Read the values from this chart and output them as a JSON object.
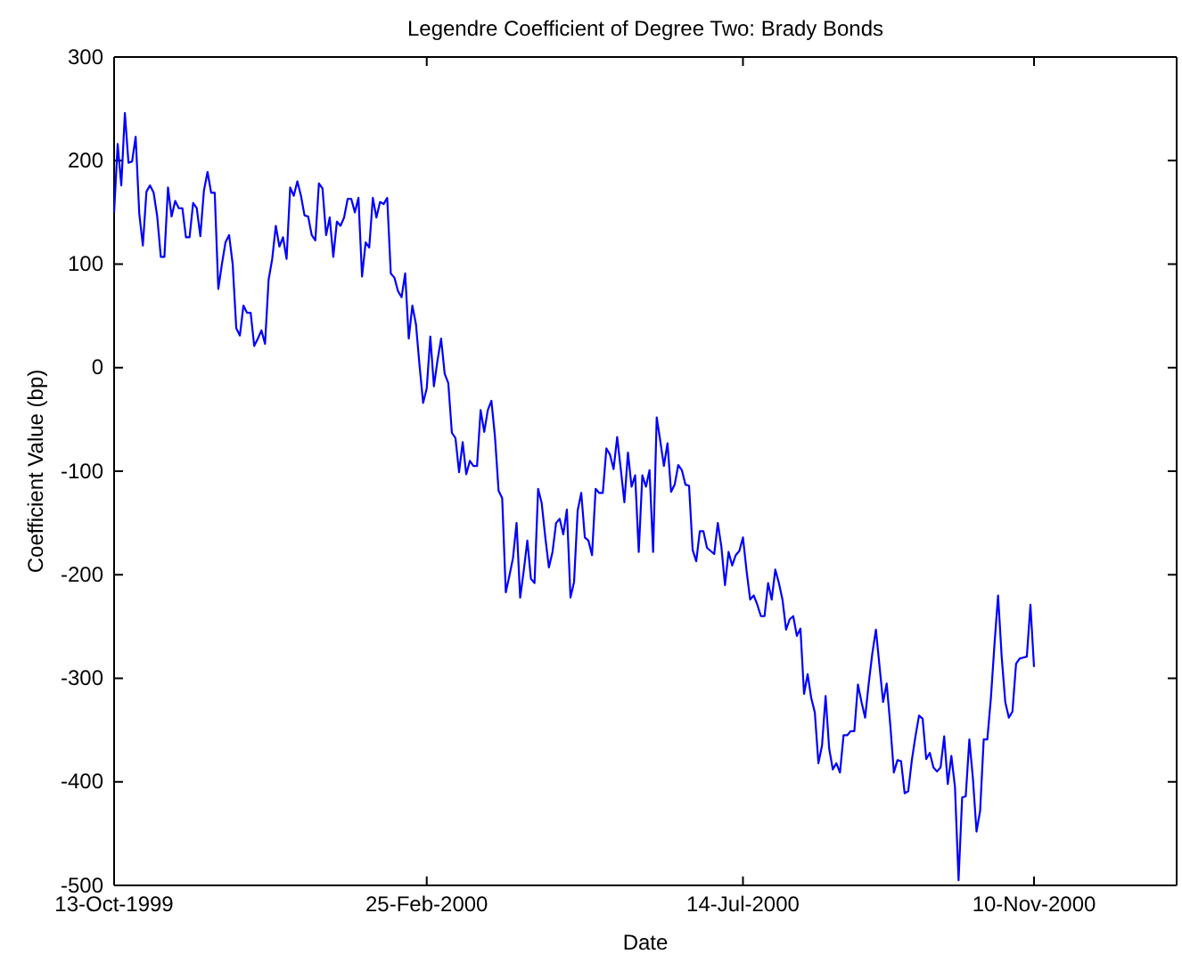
{
  "chart_data": {
    "type": "line",
    "title": "Legendre Coefficient of Degree Two: Brady Bonds",
    "xlabel": "Date",
    "ylabel": "Coefficient Value (bp)",
    "categories": [
      "13-Oct-1999",
      null,
      null,
      null,
      null,
      null,
      null,
      null,
      null,
      null,
      null,
      null,
      null,
      null,
      null,
      null,
      null,
      null,
      null,
      null,
      null,
      null,
      null,
      null,
      null,
      null,
      null,
      null,
      null,
      null,
      null,
      null,
      null,
      null,
      null,
      null,
      null,
      null,
      null,
      null,
      null,
      null,
      null,
      null,
      null,
      null,
      null,
      null,
      null,
      null,
      null,
      null,
      null,
      null,
      null,
      null,
      null,
      null,
      null,
      null,
      null,
      null,
      null,
      null,
      null,
      null,
      null,
      null,
      null,
      null,
      null,
      null,
      null,
      null,
      null,
      null,
      null,
      null,
      null,
      null,
      null,
      null,
      null,
      null,
      null,
      null,
      null,
      "25-Feb-2000",
      null,
      null,
      null,
      null,
      null,
      null,
      null,
      null,
      null,
      null,
      null,
      null,
      null,
      null,
      null,
      null,
      null,
      null,
      null,
      null,
      null,
      null,
      null,
      null,
      null,
      null,
      null,
      null,
      null,
      null,
      null,
      null,
      null,
      null,
      null,
      null,
      null,
      null,
      null,
      null,
      null,
      null,
      null,
      null,
      null,
      null,
      null,
      null,
      null,
      null,
      null,
      null,
      null,
      null,
      null,
      null,
      null,
      null,
      null,
      null,
      null,
      null,
      null,
      null,
      null,
      null,
      null,
      null,
      null,
      null,
      null,
      null,
      null,
      null,
      null,
      null,
      null,
      null,
      null,
      null,
      null,
      null,
      null,
      null,
      null,
      null,
      null,
      "14-Jul-2000",
      null,
      null,
      null,
      null,
      null,
      null,
      null,
      null,
      null,
      null,
      null,
      null,
      null,
      null,
      null,
      null,
      null,
      null,
      null,
      null,
      null,
      null,
      null,
      null,
      null,
      null,
      null,
      null,
      null,
      null,
      null,
      null,
      null,
      null,
      null,
      null,
      null,
      null,
      null,
      null,
      null,
      null,
      null,
      null,
      null,
      null,
      null,
      null,
      null,
      null,
      null,
      null,
      null,
      null,
      null,
      null,
      null,
      null,
      null,
      null,
      null,
      null,
      null,
      null,
      null,
      null,
      null,
      null,
      null,
      null,
      null,
      null,
      null,
      null,
      null,
      null,
      null,
      null,
      null,
      null,
      "10-Nov-2000"
    ],
    "ylim": [
      -500,
      300
    ],
    "yticks": [
      -500,
      -400,
      -300,
      -200,
      -100,
      0,
      100,
      200,
      300
    ],
    "grid": false,
    "marker": "none",
    "line_style": "solid",
    "series": [
      {
        "color": "#0000ff",
        "values": [
          150,
          216,
          176,
          246,
          198,
          199,
          223,
          149,
          118,
          170,
          176,
          169,
          146,
          107,
          107,
          174,
          146,
          161,
          154,
          154,
          126,
          126,
          159,
          154,
          127,
          171,
          189,
          169,
          169,
          76,
          100,
          121,
          128,
          100,
          38,
          31,
          60,
          53,
          53,
          21,
          28,
          36,
          23,
          85,
          105,
          137,
          117,
          126,
          105,
          174,
          166,
          180,
          166,
          147,
          146,
          128,
          123,
          178,
          173,
          128,
          145,
          107,
          141,
          137,
          145,
          163,
          163,
          150,
          164,
          88,
          121,
          116,
          164,
          145,
          160,
          158,
          164,
          91,
          87,
          74,
          68,
          91,
          28,
          60,
          42,
          2,
          -34,
          -20,
          30,
          -18,
          7,
          28,
          -6,
          -15,
          -63,
          -68,
          -101,
          -72,
          -103,
          -90,
          -95,
          -95,
          -41,
          -62,
          -41,
          -32,
          -67,
          -119,
          -126,
          -217,
          -201,
          -184,
          -150,
          -222,
          -196,
          -167,
          -204,
          -208,
          -117,
          -131,
          -164,
          -193,
          -178,
          -150,
          -146,
          -161,
          -137,
          -222,
          -207,
          -138,
          -121,
          -164,
          -167,
          -181,
          -117,
          -121,
          -121,
          -78,
          -84,
          -98,
          -67,
          -98,
          -130,
          -82,
          -115,
          -104,
          -178,
          -104,
          -115,
          -99,
          -178,
          -48,
          -71,
          -95,
          -73,
          -120,
          -113,
          -94,
          -99,
          -113,
          -114,
          -176,
          -187,
          -158,
          -158,
          -174,
          -177,
          -180,
          -150,
          -173,
          -210,
          -178,
          -191,
          -181,
          -177,
          -164,
          -196,
          -224,
          -220,
          -229,
          -240,
          -240,
          -208,
          -224,
          -195,
          -208,
          -224,
          -253,
          -243,
          -240,
          -259,
          -252,
          -315,
          -296,
          -319,
          -333,
          -382,
          -365,
          -317,
          -368,
          -388,
          -382,
          -391,
          -355,
          -355,
          -351,
          -351,
          -306,
          -323,
          -338,
          -305,
          -276,
          -253,
          -288,
          -323,
          -305,
          -345,
          -391,
          -379,
          -380,
          -411,
          -409,
          -379,
          -356,
          -336,
          -339,
          -378,
          -372,
          -386,
          -390,
          -386,
          -356,
          -402,
          -375,
          -405,
          -495,
          -415,
          -414,
          -359,
          -397,
          -448,
          -428,
          -359,
          -359,
          -319,
          -267,
          -220,
          -279,
          -323,
          -338,
          -332,
          -286,
          -281,
          -280,
          -279,
          -229,
          -289
        ]
      }
    ]
  }
}
